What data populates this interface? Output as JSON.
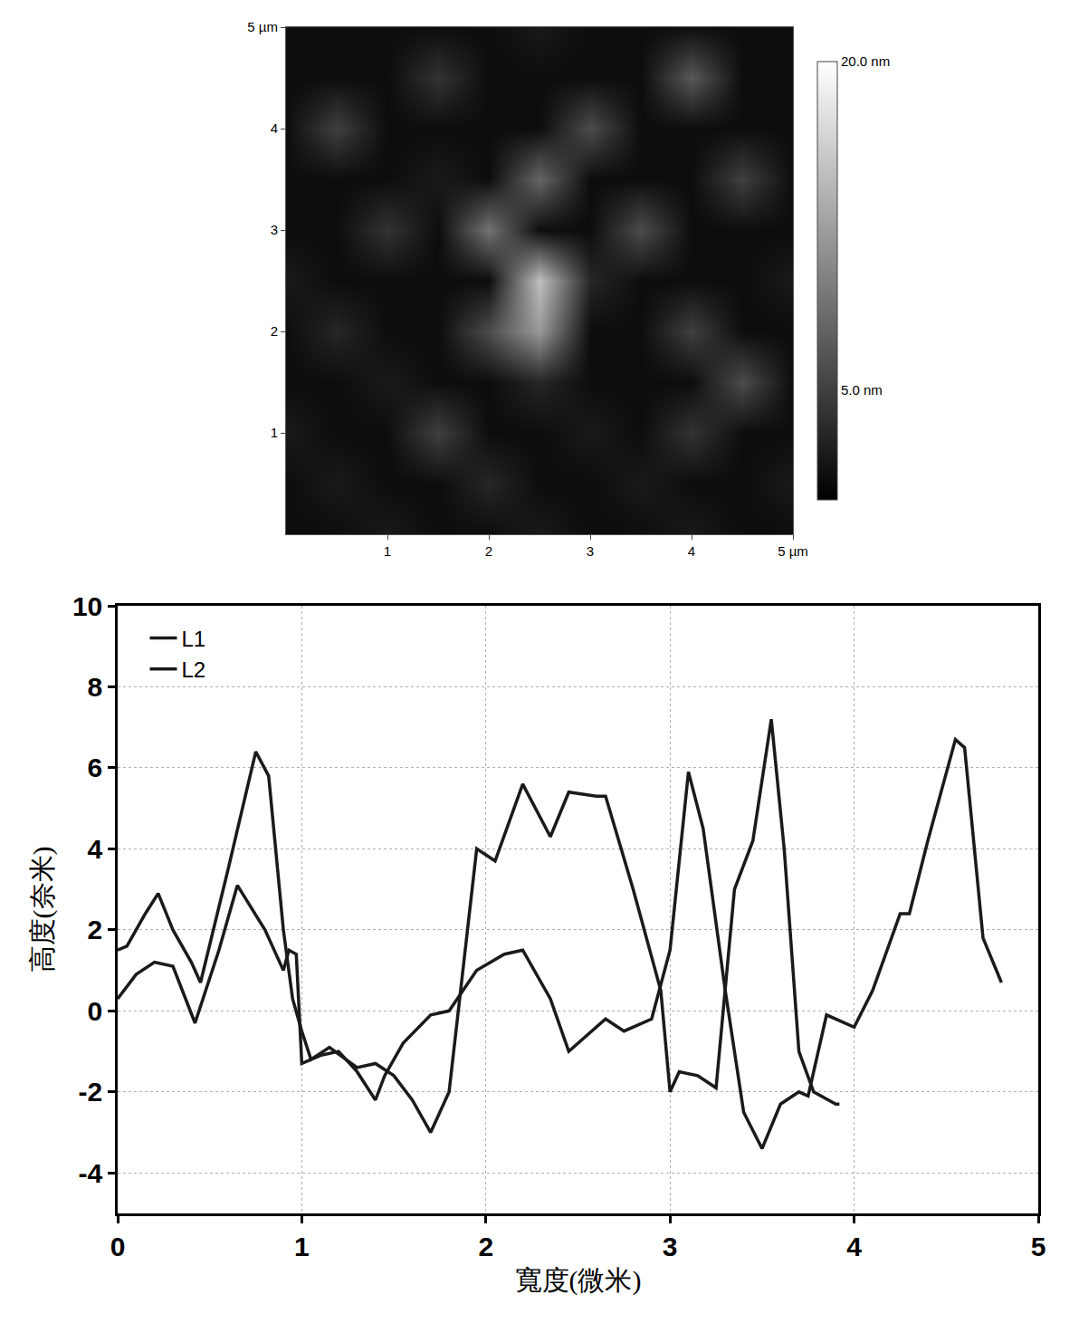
{
  "chart_data": [
    {
      "type": "heatmap",
      "x": [
        0,
        0.5,
        1,
        1.5,
        2,
        2.5,
        3,
        3.5,
        4,
        4.5,
        5
      ],
      "y": [
        0,
        0.5,
        1,
        1.5,
        2,
        2.5,
        3,
        3.5,
        4,
        4.5,
        5
      ],
      "z": [
        [
          1,
          1,
          2,
          1,
          1,
          2,
          1,
          1,
          2,
          1,
          1
        ],
        [
          1,
          2,
          1,
          1,
          3,
          1,
          1,
          2,
          1,
          1,
          2
        ],
        [
          2,
          1,
          1,
          5,
          1,
          1,
          2,
          1,
          4,
          1,
          1
        ],
        [
          1,
          1,
          2,
          1,
          1,
          3,
          1,
          1,
          1,
          6,
          1
        ],
        [
          1,
          3,
          1,
          1,
          6,
          12,
          1,
          1,
          5,
          1,
          1
        ],
        [
          2,
          1,
          1,
          1,
          1,
          15,
          3,
          1,
          1,
          1,
          2
        ],
        [
          1,
          1,
          4,
          1,
          9,
          1,
          1,
          6,
          1,
          1,
          1
        ],
        [
          1,
          1,
          1,
          2,
          1,
          8,
          1,
          1,
          1,
          5,
          1
        ],
        [
          1,
          5,
          1,
          1,
          1,
          1,
          6,
          1,
          1,
          1,
          1
        ],
        [
          1,
          1,
          1,
          4,
          1,
          1,
          1,
          1,
          7,
          1,
          1
        ],
        [
          1,
          1,
          1,
          1,
          1,
          2,
          1,
          1,
          1,
          1,
          1
        ]
      ],
      "xlim": [
        0,
        5
      ],
      "ylim": [
        0,
        5
      ],
      "xticks": [
        1,
        2,
        3,
        4,
        {
          "value": 5,
          "label": "5 µm"
        }
      ],
      "yticks": [
        1,
        2,
        3,
        4,
        {
          "value": 5,
          "label": "5 µm"
        }
      ],
      "zlim": [
        0,
        20
      ],
      "zticks": [
        {
          "value": 5,
          "label": "5.0 nm"
        },
        {
          "value": 20,
          "label": "20.0 nm"
        }
      ],
      "colors": [
        "#000000",
        "#ffffff"
      ]
    },
    {
      "type": "line",
      "x_label": "寬度(微米)",
      "y_label": "高度(奈米)",
      "series": [
        {
          "name": "L1",
          "color": "#1a1a1a",
          "x": [
            0,
            0.1,
            0.2,
            0.3,
            0.42,
            0.55,
            0.65,
            0.8,
            0.9,
            0.93,
            0.97,
            1.0,
            1.1,
            1.2,
            1.3,
            1.4,
            1.45,
            1.55,
            1.7,
            1.8,
            1.95,
            2.1,
            2.2,
            2.35,
            2.45,
            2.55,
            2.65,
            2.75,
            2.9,
            3.0,
            3.1,
            3.18,
            3.3,
            3.4,
            3.5,
            3.6,
            3.7,
            3.75,
            3.85,
            4.0,
            4.1,
            4.25,
            4.3,
            4.4,
            4.55,
            4.6,
            4.7,
            4.8
          ],
          "values": [
            0.3,
            0.9,
            1.2,
            1.1,
            -0.3,
            1.5,
            3.1,
            2.0,
            1.0,
            1.5,
            1.4,
            -1.3,
            -1.1,
            -1.0,
            -1.5,
            -2.2,
            -1.6,
            -0.8,
            -0.1,
            0.0,
            1.0,
            1.4,
            1.5,
            0.3,
            -1.0,
            -0.6,
            -0.2,
            -0.5,
            -0.2,
            1.5,
            5.9,
            4.5,
            0.5,
            -2.5,
            -3.4,
            -2.3,
            -2.0,
            -2.1,
            -0.1,
            -0.4,
            0.5,
            2.4,
            2.4,
            4.2,
            6.7,
            6.5,
            1.8,
            0.7
          ]
        },
        {
          "name": "L2",
          "color": "#1a1a1a",
          "x": [
            0,
            0.05,
            0.15,
            0.22,
            0.3,
            0.4,
            0.45,
            0.6,
            0.75,
            0.82,
            0.9,
            0.95,
            1.0,
            1.05,
            1.15,
            1.3,
            1.4,
            1.5,
            1.6,
            1.7,
            1.8,
            1.95,
            2.05,
            2.2,
            2.35,
            2.45,
            2.6,
            2.65,
            2.8,
            2.95,
            3.0,
            3.05,
            3.15,
            3.25,
            3.35,
            3.45,
            3.55,
            3.62,
            3.7,
            3.78,
            3.9,
            3.92
          ],
          "values": [
            1.5,
            1.6,
            2.4,
            2.9,
            2.0,
            1.2,
            0.7,
            3.5,
            6.4,
            5.8,
            2.0,
            0.3,
            -0.5,
            -1.2,
            -0.9,
            -1.4,
            -1.3,
            -1.6,
            -2.2,
            -3.0,
            -2.0,
            4.0,
            3.7,
            5.6,
            4.3,
            5.4,
            5.3,
            5.3,
            3.0,
            0.5,
            -2.0,
            -1.5,
            -1.6,
            -1.9,
            3.0,
            4.2,
            7.2,
            4.0,
            -1.0,
            -2.0,
            -2.3,
            -2.3
          ]
        }
      ],
      "xlim": [
        0,
        5
      ],
      "xticks": [
        0,
        1,
        2,
        3,
        4,
        5
      ],
      "ylim": [
        -5,
        10
      ],
      "yticks": [
        -4,
        -2,
        0,
        2,
        4,
        6,
        8,
        10
      ],
      "grid": true,
      "legend": "upper left"
    }
  ]
}
